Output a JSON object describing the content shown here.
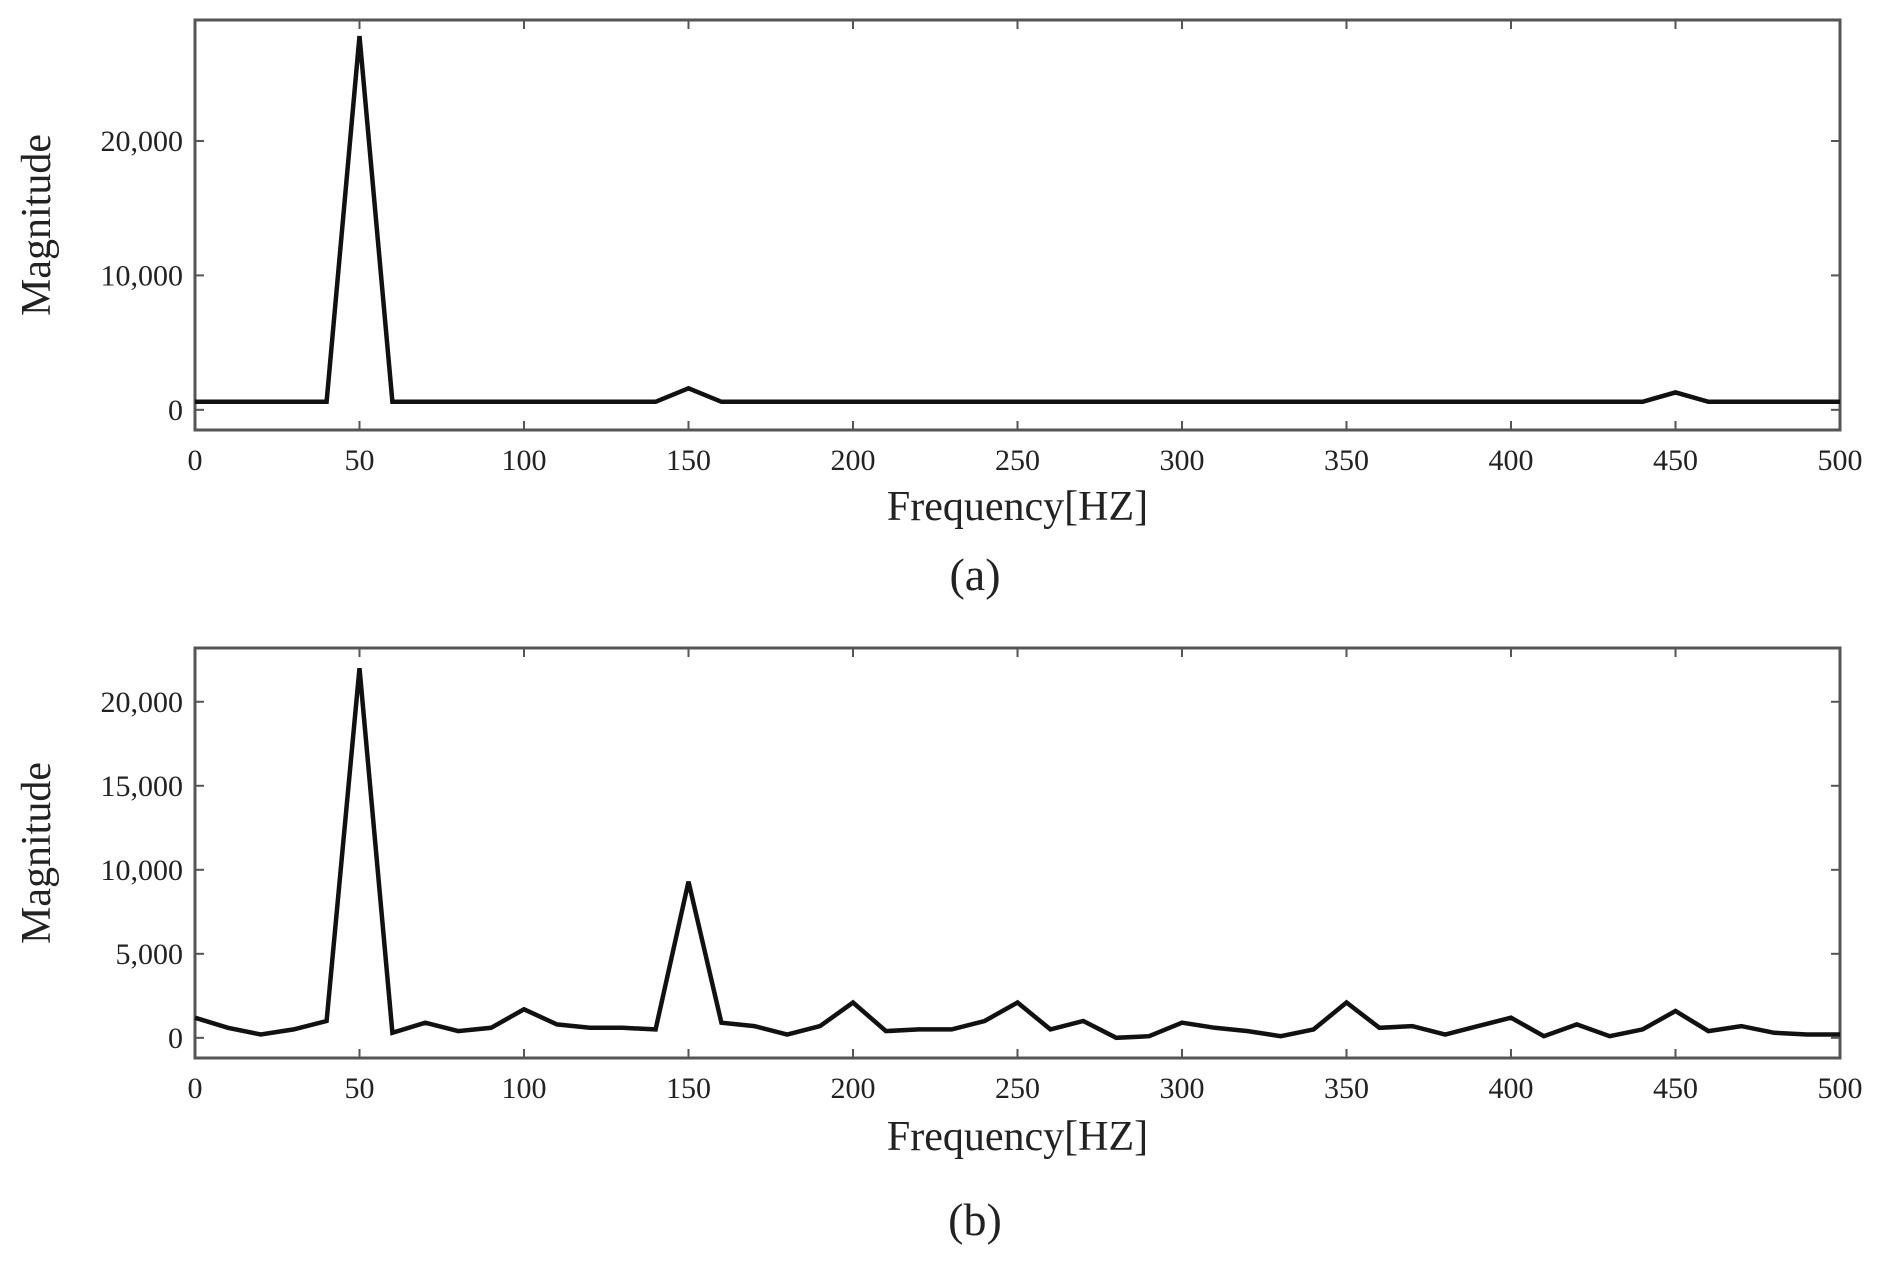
{
  "colors": {
    "line": "#111111",
    "frame": "#555555",
    "text": "#222222",
    "background": "#ffffff"
  },
  "chart_data": [
    {
      "type": "line",
      "caption": "(a)",
      "xlabel": "Frequency[HZ]",
      "ylabel": "Magnitude",
      "xlim": [
        0,
        500
      ],
      "ylim": [
        -1500,
        29000
      ],
      "x_ticks": [
        0,
        50,
        100,
        150,
        200,
        250,
        300,
        350,
        400,
        450,
        500
      ],
      "x_tick_labels": [
        "0",
        "50",
        "100",
        "150",
        "200",
        "250",
        "300",
        "350",
        "400",
        "450",
        "500"
      ],
      "y_ticks": [
        0,
        10000,
        20000
      ],
      "y_tick_labels": [
        "0",
        "10,000",
        "20,000"
      ],
      "grid": false,
      "series": [
        {
          "x": [
            0,
            10,
            20,
            30,
            40,
            50,
            60,
            70,
            80,
            90,
            100,
            110,
            120,
            130,
            140,
            150,
            160,
            170,
            180,
            190,
            200,
            210,
            220,
            230,
            240,
            250,
            260,
            270,
            280,
            290,
            300,
            310,
            320,
            330,
            340,
            350,
            360,
            370,
            380,
            390,
            400,
            410,
            420,
            430,
            440,
            450,
            460,
            470,
            480,
            490,
            500
          ],
          "y": [
            600,
            600,
            600,
            600,
            600,
            27800,
            600,
            600,
            600,
            600,
            600,
            600,
            600,
            600,
            600,
            1600,
            600,
            600,
            600,
            600,
            600,
            600,
            600,
            600,
            600,
            600,
            600,
            600,
            600,
            600,
            600,
            600,
            600,
            600,
            600,
            600,
            600,
            600,
            600,
            600,
            600,
            600,
            600,
            600,
            600,
            1300,
            600,
            600,
            600,
            600,
            600
          ]
        }
      ]
    },
    {
      "type": "line",
      "caption": "(b)",
      "xlabel": "Frequency[HZ]",
      "ylabel": "Magnitude",
      "xlim": [
        0,
        500
      ],
      "ylim": [
        -1200,
        23200
      ],
      "x_ticks": [
        0,
        50,
        100,
        150,
        200,
        250,
        300,
        350,
        400,
        450,
        500
      ],
      "x_tick_labels": [
        "0",
        "50",
        "100",
        "150",
        "200",
        "250",
        "300",
        "350",
        "400",
        "450",
        "500"
      ],
      "y_ticks": [
        0,
        5000,
        10000,
        15000,
        20000
      ],
      "y_tick_labels": [
        "0",
        "5,000",
        "10,000",
        "15,000",
        "20,000"
      ],
      "grid": false,
      "series": [
        {
          "x": [
            0,
            10,
            20,
            30,
            40,
            50,
            60,
            70,
            80,
            90,
            100,
            110,
            120,
            130,
            140,
            150,
            160,
            170,
            180,
            190,
            200,
            210,
            220,
            230,
            240,
            250,
            260,
            270,
            280,
            290,
            300,
            310,
            320,
            330,
            340,
            350,
            360,
            370,
            380,
            390,
            400,
            410,
            420,
            430,
            440,
            450,
            460,
            470,
            480,
            490,
            500
          ],
          "y": [
            1200,
            600,
            200,
            500,
            1000,
            22000,
            300,
            900,
            400,
            600,
            1700,
            800,
            600,
            600,
            500,
            9300,
            900,
            700,
            200,
            700,
            2100,
            400,
            500,
            500,
            1000,
            2100,
            500,
            1000,
            0,
            100,
            900,
            600,
            400,
            100,
            500,
            2100,
            600,
            700,
            200,
            700,
            1200,
            100,
            800,
            100,
            500,
            1600,
            400,
            700,
            300,
            200,
            200
          ]
        }
      ]
    }
  ]
}
